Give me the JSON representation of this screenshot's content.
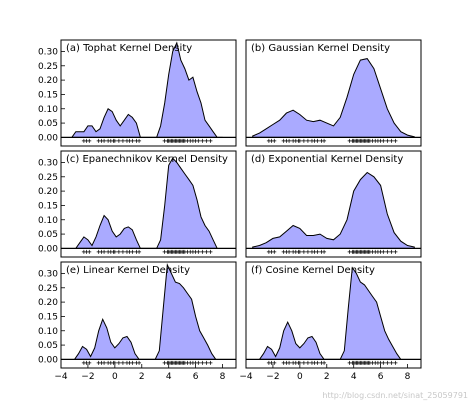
{
  "figure": {
    "watermark": "http://blog.csdn.net/sinat_25059791"
  },
  "chart_data": [
    {
      "type": "area",
      "title": "(a) Tophat Kernel Density",
      "xlim": [
        -4,
        9
      ],
      "ylim": [
        -0.03,
        0.34
      ],
      "yticks": [
        "0.00",
        "0.05",
        "0.10",
        "0.15",
        "0.20",
        "0.25",
        "0.30"
      ],
      "xticks": [],
      "fill_color": "#aaaaff",
      "x": [
        -3.2,
        -2.9,
        -2.6,
        -2.3,
        -2.0,
        -1.7,
        -1.4,
        -1.1,
        -0.8,
        -0.5,
        -0.2,
        0.1,
        0.4,
        0.7,
        1.0,
        1.3,
        1.6,
        1.9,
        2.2,
        2.5,
        2.8,
        3.1,
        3.4,
        3.7,
        4.0,
        4.3,
        4.6,
        4.9,
        5.2,
        5.5,
        5.8,
        6.1,
        6.4,
        6.7,
        7.0,
        7.3,
        7.6,
        7.9
      ],
      "y": [
        0.0,
        0.02,
        0.02,
        0.02,
        0.04,
        0.04,
        0.02,
        0.03,
        0.07,
        0.1,
        0.09,
        0.06,
        0.04,
        0.06,
        0.08,
        0.07,
        0.05,
        0.0,
        0.0,
        0.0,
        0.0,
        0.0,
        0.04,
        0.12,
        0.22,
        0.3,
        0.33,
        0.27,
        0.24,
        0.2,
        0.21,
        0.16,
        0.12,
        0.06,
        0.04,
        0.02,
        0.0,
        0.0
      ]
    },
    {
      "type": "area",
      "title": "(b) Gaussian Kernel Density",
      "xlim": [
        -4,
        9
      ],
      "ylim": [
        -0.03,
        0.34
      ],
      "yticks": [],
      "xticks": [],
      "fill_color": "#aaaaff",
      "x": [
        -3.5,
        -3.0,
        -2.5,
        -2.0,
        -1.5,
        -1.0,
        -0.5,
        0.0,
        0.5,
        1.0,
        1.5,
        2.0,
        2.5,
        3.0,
        3.5,
        4.0,
        4.5,
        5.0,
        5.5,
        6.0,
        6.5,
        7.0,
        7.5,
        8.0,
        8.5
      ],
      "y": [
        0.005,
        0.015,
        0.03,
        0.045,
        0.06,
        0.085,
        0.095,
        0.08,
        0.06,
        0.055,
        0.06,
        0.05,
        0.04,
        0.07,
        0.14,
        0.22,
        0.27,
        0.275,
        0.24,
        0.17,
        0.1,
        0.05,
        0.02,
        0.008,
        0.002
      ]
    },
    {
      "type": "area",
      "title": "(c) Epanechnikov Kernel Density",
      "xlim": [
        -4,
        9
      ],
      "ylim": [
        -0.03,
        0.34
      ],
      "yticks": [
        "0.00",
        "0.05",
        "0.10",
        "0.15",
        "0.20",
        "0.25",
        "0.30"
      ],
      "xticks": [],
      "fill_color": "#aaaaff",
      "x": [
        -2.9,
        -2.6,
        -2.3,
        -2.0,
        -1.7,
        -1.4,
        -1.1,
        -0.8,
        -0.5,
        -0.2,
        0.1,
        0.4,
        0.7,
        1.0,
        1.3,
        1.6,
        1.9,
        2.2,
        2.5,
        2.8,
        3.1,
        3.4,
        3.7,
        4.0,
        4.3,
        4.6,
        4.9,
        5.2,
        5.5,
        5.8,
        6.1,
        6.4,
        6.7,
        7.0,
        7.3,
        7.6
      ],
      "y": [
        0.0,
        0.02,
        0.04,
        0.03,
        0.01,
        0.04,
        0.08,
        0.115,
        0.1,
        0.06,
        0.04,
        0.05,
        0.07,
        0.075,
        0.065,
        0.03,
        0.0,
        0.0,
        0.0,
        0.0,
        0.0,
        0.03,
        0.15,
        0.29,
        0.315,
        0.3,
        0.28,
        0.26,
        0.24,
        0.22,
        0.17,
        0.11,
        0.08,
        0.06,
        0.03,
        0.0
      ]
    },
    {
      "type": "area",
      "title": "(d) Exponential Kernel Density",
      "xlim": [
        -4,
        9
      ],
      "ylim": [
        -0.03,
        0.34
      ],
      "yticks": [],
      "xticks": [],
      "fill_color": "#aaaaff",
      "x": [
        -3.5,
        -3.0,
        -2.5,
        -2.0,
        -1.5,
        -1.0,
        -0.5,
        0.0,
        0.5,
        1.0,
        1.5,
        2.0,
        2.5,
        3.0,
        3.5,
        4.0,
        4.5,
        5.0,
        5.5,
        6.0,
        6.5,
        7.0,
        7.5,
        8.0,
        8.5
      ],
      "y": [
        0.005,
        0.01,
        0.02,
        0.035,
        0.04,
        0.06,
        0.08,
        0.07,
        0.045,
        0.045,
        0.05,
        0.035,
        0.03,
        0.05,
        0.1,
        0.2,
        0.24,
        0.265,
        0.25,
        0.22,
        0.12,
        0.055,
        0.025,
        0.01,
        0.005
      ]
    },
    {
      "type": "area",
      "title": "(e) Linear Kernel Density",
      "xlim": [
        -4,
        9
      ],
      "ylim": [
        -0.03,
        0.34
      ],
      "yticks": [
        "0.00",
        "0.05",
        "0.10",
        "0.15",
        "0.20",
        "0.25",
        "0.30"
      ],
      "xticks": [
        "-4",
        "-2",
        "0",
        "2",
        "4",
        "6",
        "8"
      ],
      "fill_color": "#aaaaff",
      "x": [
        -3.0,
        -2.7,
        -2.4,
        -2.1,
        -1.8,
        -1.5,
        -1.2,
        -0.9,
        -0.6,
        -0.3,
        0.0,
        0.3,
        0.6,
        0.9,
        1.2,
        1.5,
        1.8,
        2.1,
        2.4,
        2.7,
        3.0,
        3.3,
        3.6,
        3.9,
        4.2,
        4.5,
        4.8,
        5.1,
        5.4,
        5.7,
        6.0,
        6.3,
        6.6,
        6.9,
        7.2,
        7.5
      ],
      "y": [
        0.0,
        0.02,
        0.045,
        0.035,
        0.01,
        0.04,
        0.1,
        0.14,
        0.11,
        0.06,
        0.04,
        0.055,
        0.075,
        0.08,
        0.06,
        0.02,
        0.0,
        0.0,
        0.0,
        0.0,
        0.0,
        0.03,
        0.18,
        0.33,
        0.3,
        0.27,
        0.265,
        0.25,
        0.23,
        0.21,
        0.15,
        0.1,
        0.075,
        0.05,
        0.02,
        0.0
      ]
    },
    {
      "type": "area",
      "title": "(f) Cosine Kernel Density",
      "xlim": [
        -4,
        9
      ],
      "ylim": [
        -0.03,
        0.34
      ],
      "yticks": [],
      "xticks": [
        "-4",
        "-2",
        "0",
        "2",
        "4",
        "6",
        "8"
      ],
      "fill_color": "#aaaaff",
      "x": [
        -3.0,
        -2.7,
        -2.4,
        -2.1,
        -1.8,
        -1.5,
        -1.2,
        -0.9,
        -0.6,
        -0.3,
        0.0,
        0.3,
        0.6,
        0.9,
        1.2,
        1.5,
        1.8,
        2.1,
        2.4,
        2.7,
        3.0,
        3.3,
        3.6,
        3.9,
        4.2,
        4.5,
        4.8,
        5.1,
        5.4,
        5.7,
        6.0,
        6.3,
        6.6,
        6.9,
        7.2,
        7.5
      ],
      "y": [
        0.0,
        0.02,
        0.045,
        0.035,
        0.01,
        0.04,
        0.1,
        0.13,
        0.1,
        0.055,
        0.04,
        0.055,
        0.075,
        0.08,
        0.06,
        0.02,
        0.0,
        0.0,
        0.0,
        0.0,
        0.0,
        0.03,
        0.18,
        0.32,
        0.3,
        0.27,
        0.26,
        0.24,
        0.22,
        0.2,
        0.15,
        0.1,
        0.07,
        0.045,
        0.02,
        0.0
      ]
    }
  ],
  "samples": [
    -2.3,
    -2.1,
    -1.9,
    -1.2,
    -1.0,
    -0.8,
    -0.5,
    -0.3,
    -0.1,
    0.0,
    0.3,
    0.6,
    0.9,
    1.1,
    1.3,
    1.6,
    1.8,
    3.7,
    3.9,
    4.0,
    4.1,
    4.2,
    4.3,
    4.4,
    4.5,
    4.6,
    4.7,
    4.8,
    4.9,
    5.0,
    5.1,
    5.2,
    5.4,
    5.6,
    5.8,
    6.0,
    6.2,
    6.5,
    6.8,
    7.1
  ]
}
